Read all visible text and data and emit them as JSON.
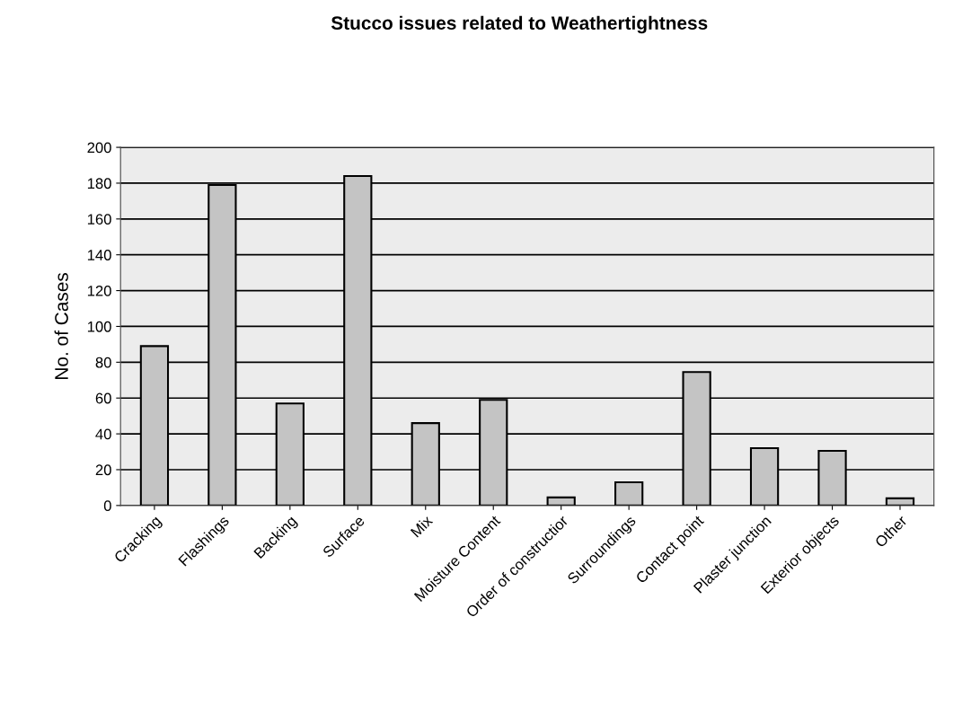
{
  "chart_data": {
    "type": "bar",
    "title": "Stucco issues related to Weathertightness",
    "ylabel": "No. of Cases",
    "categories": [
      "Cracking",
      "Flashings",
      "Backing",
      "Surface",
      "Mix",
      "Moisture Content",
      "Order of constructior",
      "Surroundings",
      "Contact point",
      "Plaster junction",
      "Exterior objects",
      "Other"
    ],
    "values": [
      89,
      179,
      57,
      184,
      46,
      59,
      4.5,
      13,
      74.5,
      32,
      30.5,
      4
    ],
    "color": "#c4c4c4",
    "ylim": [
      0,
      200
    ],
    "yticks": [
      0,
      20,
      40,
      60,
      80,
      100,
      120,
      140,
      160,
      180,
      200
    ],
    "grid": "y"
  }
}
